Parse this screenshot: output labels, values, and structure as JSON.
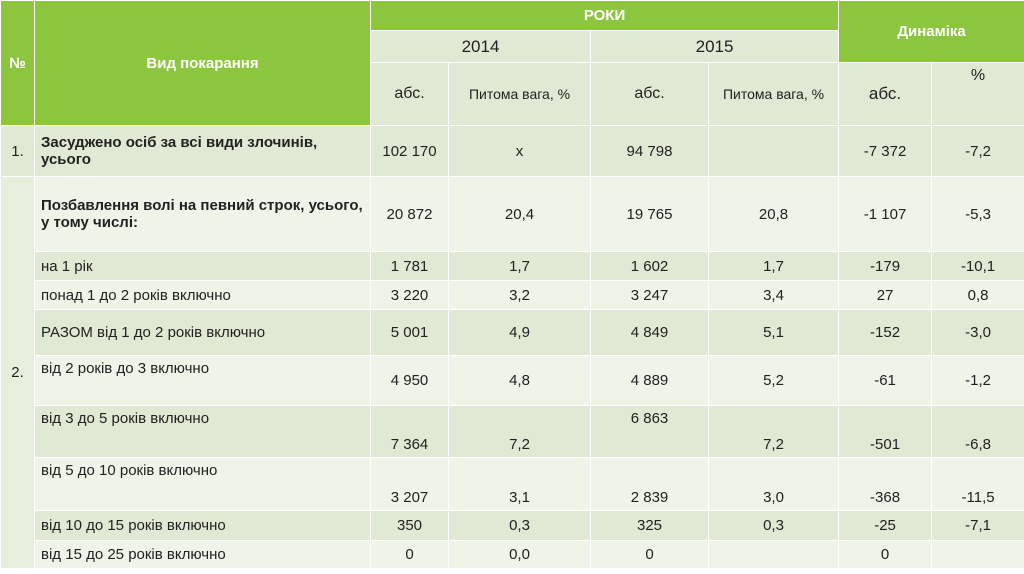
{
  "header": {
    "number": "№",
    "type": "Вид покарання",
    "years": "РОКИ",
    "year1": "2014",
    "year2": "2015",
    "dynamics": "Динаміка",
    "abs1": "абс.",
    "share1": "Питома вага, %",
    "abs2": "абс.",
    "share2": "Питома вага, %",
    "abs3": "абс.",
    "pct": "%"
  },
  "rows": [
    {
      "num": "1.",
      "name": "Засуджено осіб за всі види злочинів, усього",
      "a14": "102 170",
      "s14": "х",
      "a15": "94 798",
      "s15": "",
      "da": "-7 372",
      "dp": "-7,2"
    },
    {
      "num": "2.",
      "name": "Позбавлення волі на певний строк, усього,",
      "name2": " у тому числі:",
      "a14": "20 872",
      "s14": "20,4",
      "a15": "19 765",
      "s15": "20,8",
      "da": "-1 107",
      "dp": "-5,3"
    },
    {
      "name": "на 1 рік",
      "a14": "1 781",
      "s14": "1,7",
      "a15": "1 602",
      "s15": "1,7",
      "da": "-179",
      "dp": "-10,1"
    },
    {
      "name": "понад 1 до 2 років включно",
      "a14": "3 220",
      "s14": "3,2",
      "a15": "3 247",
      "s15": "3,4",
      "da": "27",
      "dp": "0,8"
    },
    {
      "name": "РАЗОМ від 1 до 2 років включно",
      "a14": "5 001",
      "s14": "4,9",
      "a15": "4 849",
      "s15": "5,1",
      "da": "-152",
      "dp": "-3,0"
    },
    {
      "name": "від 2 років до 3 включно",
      "a14": "4 950",
      "s14": "4,8",
      "a15": "4 889",
      "s15": "5,2",
      "da": "-61",
      "dp": "-1,2"
    },
    {
      "name": "від 3 до 5 років включно",
      "a14": "7 364",
      "s14": "7,2",
      "a15": "6 863",
      "s15": "7,2",
      "da": "-501",
      "dp": "-6,8"
    },
    {
      "name": "від 5 до 10 років включно",
      "a14": "3 207",
      "s14": "3,1",
      "a15": "2 839",
      "s15": "3,0",
      "da": "-368",
      "dp": "-11,5"
    },
    {
      "name": "від 10 до 15 років включно",
      "a14": "350",
      "s14": "0,3",
      "a15": "325",
      "s15": "0,3",
      "da": "-25",
      "dp": "-7,1"
    },
    {
      "name": "від 15 до 25 років включно",
      "a14": "0",
      "s14": "0,0",
      "a15": "0",
      "s15": "",
      "da": "0",
      "dp": ""
    }
  ]
}
